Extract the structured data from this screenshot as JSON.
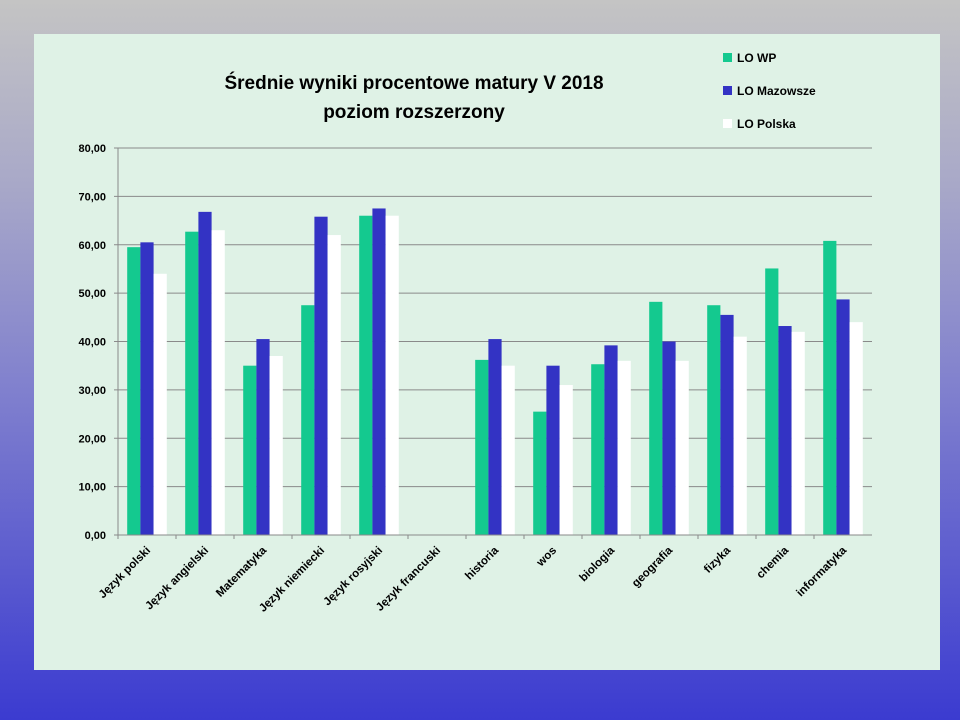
{
  "chart_data": {
    "type": "bar",
    "title": [
      "Średnie wyniki procentowe matury V 2018",
      "poziom rozszerzony"
    ],
    "xlabel": "",
    "ylabel": "",
    "ylim": [
      0,
      80
    ],
    "yticks": [
      "0,00",
      "10,00",
      "20,00",
      "30,00",
      "40,00",
      "50,00",
      "60,00",
      "70,00",
      "80,00"
    ],
    "grid": true,
    "legend_position": "top-right",
    "categories": [
      "Język polski",
      "Język angielski",
      "Matematyka",
      "Język niemiecki",
      "Język rosyjski",
      "Język francuski",
      "historia",
      "wos",
      "biologia",
      "geografia",
      "fizyka",
      "chemia",
      "informatyka"
    ],
    "series": [
      {
        "name": "LO WP",
        "color": "#14c98f",
        "values": [
          59.5,
          62.7,
          35.0,
          47.5,
          66.0,
          0,
          36.2,
          25.5,
          35.3,
          48.2,
          47.5,
          55.1,
          60.8
        ]
      },
      {
        "name": "LO Mazowsze",
        "color": "#3333c4",
        "values": [
          60.5,
          66.8,
          40.5,
          65.8,
          67.5,
          0,
          40.5,
          35.0,
          39.2,
          40.0,
          45.5,
          43.2,
          48.7
        ]
      },
      {
        "name": "LO Polska",
        "color": "#ffffff",
        "values": [
          54.0,
          63.0,
          37.0,
          62.0,
          66.0,
          0,
          35.0,
          31.0,
          36.0,
          36.0,
          41.0,
          42.0,
          44.0
        ]
      }
    ]
  }
}
